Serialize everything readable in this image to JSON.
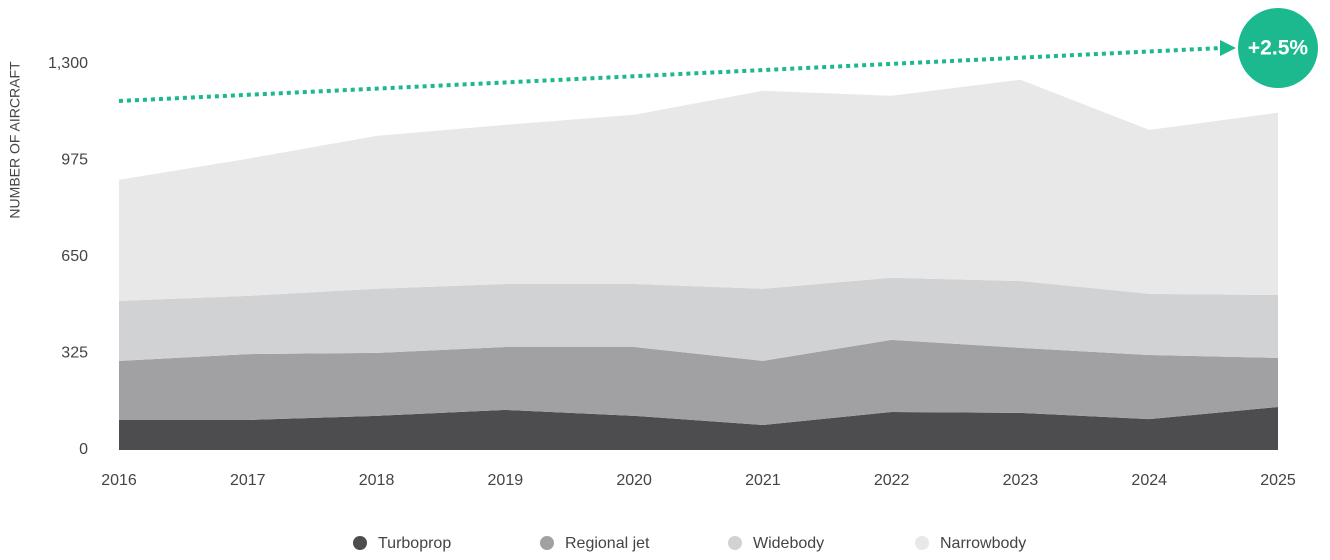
{
  "chart_data": {
    "type": "stacked_area",
    "y_axis_label": "NUMBER OF AIRCRAFT",
    "annotation": "+2.5%",
    "categories": [
      "2016",
      "2017",
      "2018",
      "2019",
      "2020",
      "2021",
      "2022",
      "2023",
      "2024",
      "2025"
    ],
    "series": [
      {
        "name": "Turboprop",
        "color": "#4d4d4f",
        "values": [
          101,
          101,
          115,
          135,
          115,
          84,
          128,
          125,
          104,
          145
        ]
      },
      {
        "name": "Regional jet",
        "color": "#a1a1a4",
        "values": [
          199,
          222,
          212,
          212,
          232,
          216,
          243,
          219,
          216,
          165
        ]
      },
      {
        "name": "Widebody",
        "color": "#d1d2d4",
        "values": [
          202,
          196,
          216,
          212,
          212,
          243,
          209,
          225,
          206,
          212
        ]
      },
      {
        "name": "Narrowbody",
        "color": "#e8e8e9",
        "values": [
          408,
          462,
          515,
          536,
          570,
          667,
          613,
          678,
          552,
          614
        ]
      }
    ],
    "ylim": [
      0,
      1300
    ],
    "yticks": [
      0,
      325,
      650,
      975,
      {
        "value": 1300,
        "label": "1,300"
      }
    ]
  }
}
